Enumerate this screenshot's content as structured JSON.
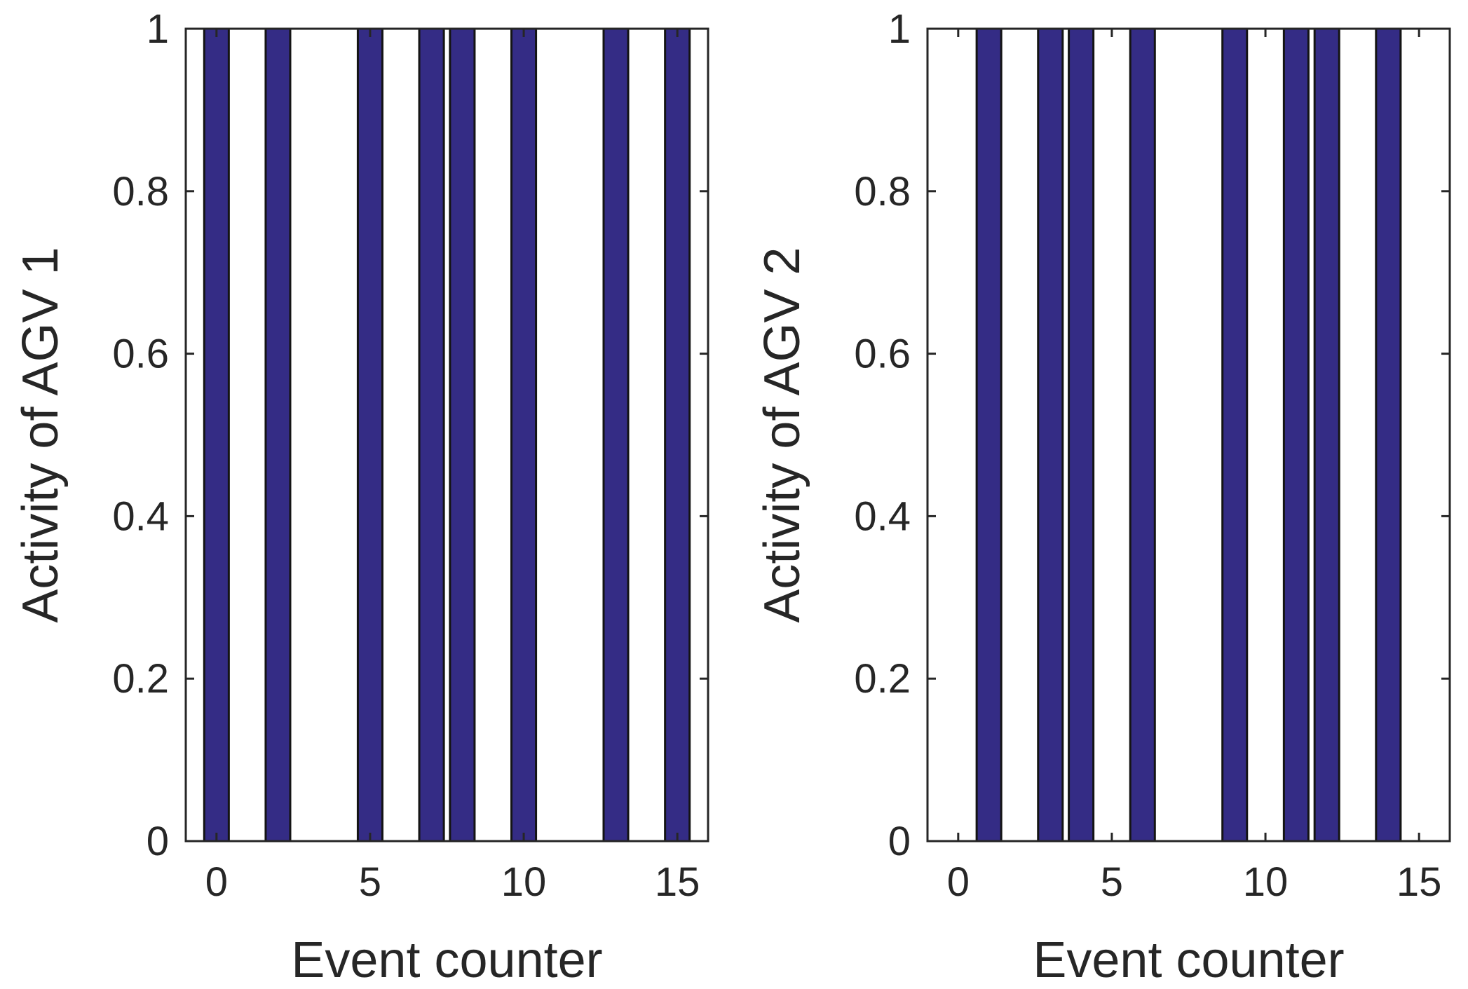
{
  "colors": {
    "bar_fill": "#342c85",
    "bar_edge": "#141414",
    "axis": "#262626",
    "background": "#ffffff"
  },
  "chart_data": [
    {
      "type": "bar",
      "xlabel": "Event counter",
      "ylabel": "Activity of AGV 1",
      "xlim": [
        -1,
        16
      ],
      "ylim": [
        0,
        1
      ],
      "xticks": [
        0,
        5,
        10,
        15
      ],
      "xtick_labels": [
        "0",
        "5",
        "10",
        "15"
      ],
      "yticks": [
        0,
        0.2,
        0.4,
        0.6,
        0.8,
        1
      ],
      "ytick_labels": [
        "0",
        "0.2",
        "0.4",
        "0.6",
        "0.8",
        "1"
      ],
      "bar_width": 0.8,
      "x": [
        0,
        1,
        2,
        3,
        4,
        5,
        6,
        7,
        8,
        9,
        10,
        11,
        12,
        13,
        14,
        15
      ],
      "values": [
        1,
        0,
        1,
        0,
        0,
        1,
        0,
        1,
        1,
        0,
        1,
        0,
        0,
        1,
        0,
        1
      ],
      "grid": false,
      "box": true
    },
    {
      "type": "bar",
      "xlabel": "Event counter",
      "ylabel": "Activity of AGV 2",
      "xlim": [
        -1,
        16
      ],
      "ylim": [
        0,
        1
      ],
      "xticks": [
        0,
        5,
        10,
        15
      ],
      "xtick_labels": [
        "0",
        "5",
        "10",
        "15"
      ],
      "yticks": [
        0,
        0.2,
        0.4,
        0.6,
        0.8,
        1
      ],
      "ytick_labels": [
        "0",
        "0.2",
        "0.4",
        "0.6",
        "0.8",
        "1"
      ],
      "bar_width": 0.8,
      "x": [
        0,
        1,
        2,
        3,
        4,
        5,
        6,
        7,
        8,
        9,
        10,
        11,
        12,
        13,
        14,
        15
      ],
      "values": [
        0,
        1,
        0,
        1,
        1,
        0,
        1,
        0,
        0,
        1,
        0,
        1,
        1,
        0,
        1,
        0
      ],
      "grid": false,
      "box": true
    }
  ]
}
